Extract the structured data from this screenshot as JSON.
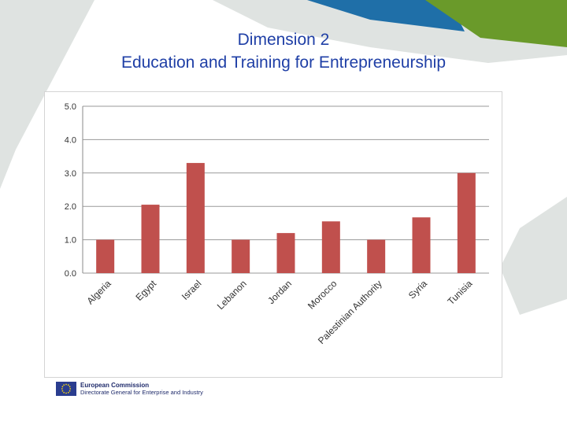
{
  "slide": {
    "title_line1": "Dimension 2",
    "title_line2": "Education and Training for Entrepreneurship"
  },
  "footer": {
    "organization": "European Commission",
    "directorate": "Directorate General for Enterprise and Industry"
  },
  "colors": {
    "title": "#1f3fa6",
    "bar": "#c0504d",
    "deco_gray": "#dfe3e1",
    "deco_blue": "#1f6fa8",
    "deco_green": "#6a9a2a"
  },
  "chart_data": {
    "type": "bar",
    "categories": [
      "Algeria",
      "Egypt",
      "Israel",
      "Lebanon",
      "Jordan",
      "Morocco",
      "Palestinian Authority",
      "Syria",
      "Tunisia"
    ],
    "values": [
      1.0,
      2.05,
      3.3,
      1.0,
      1.2,
      1.55,
      1.0,
      1.67,
      3.0
    ],
    "yticks": [
      "0.0",
      "1.0",
      "2.0",
      "3.0",
      "4.0",
      "5.0"
    ],
    "ylim": [
      0,
      5
    ],
    "grid": true,
    "legend": "none",
    "title": "",
    "xlabel": "",
    "ylabel": ""
  }
}
